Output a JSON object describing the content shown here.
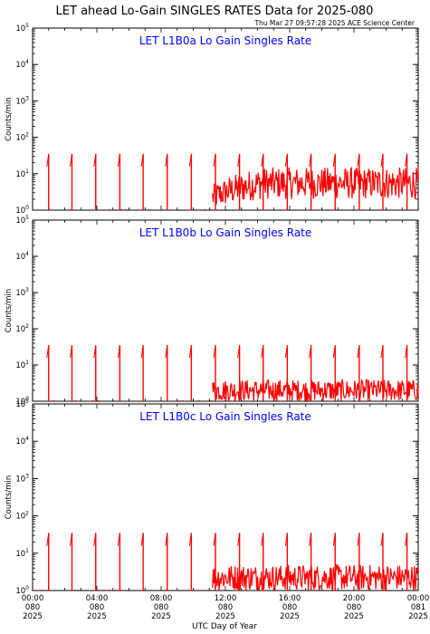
{
  "header": {
    "title": "LET ahead Lo-Gain SINGLES RATES Data for 2025-080",
    "timestamp": "Thu Mar 27 09:57:28 2025 ACE Science Center"
  },
  "colors": {
    "data": "#ff0000",
    "panel_title": "#0000ff",
    "axis": "#000000"
  },
  "chart_data": [
    {
      "type": "line",
      "panel_title": "LET L1B0a Lo Gain Singles Rate",
      "ylabel": "Counts/min",
      "yscale": "log",
      "ylim": [
        1,
        100000
      ],
      "y_tick_labels": [
        "10^0",
        "10^1",
        "10^2",
        "10^3",
        "10^4",
        "10^5"
      ],
      "xlim": [
        0,
        24
      ],
      "series": [
        {
          "spikes_hours": [
            1.0,
            2.45,
            3.93,
            5.43,
            6.88,
            8.38,
            9.88,
            11.38,
            12.88,
            14.35,
            15.85,
            17.33,
            18.83,
            20.33,
            21.8,
            23.3
          ],
          "spike_peak": 35,
          "baseline_before_hour": 11.2,
          "baseline_low": 1,
          "noisy_after_hour": 11.2,
          "noisy_range_early": [
            1,
            5
          ],
          "noisy_range_late": [
            2,
            15
          ]
        }
      ]
    },
    {
      "type": "line",
      "panel_title": "LET L1B0b Lo Gain Singles Rate",
      "ylabel": "Counts/min",
      "yscale": "log",
      "ylim": [
        1,
        100000
      ],
      "y_tick_labels": [
        "10^0",
        "10^1",
        "10^2",
        "10^3",
        "10^4",
        "10^5"
      ],
      "xlim": [
        0,
        24
      ],
      "series": [
        {
          "spikes_hours": [
            1.0,
            2.45,
            3.93,
            5.43,
            6.88,
            8.38,
            9.88,
            11.38,
            12.88,
            14.35,
            15.85,
            17.33,
            18.83,
            20.33,
            21.8,
            23.3
          ],
          "spike_peak": 35,
          "baseline_low": 1,
          "noisy_after_hour": 11.2,
          "noisy_range": [
            1,
            4
          ]
        }
      ]
    },
    {
      "type": "line",
      "panel_title": "LET L1B0c Lo Gain Singles Rate",
      "ylabel": "Counts/min",
      "yscale": "log",
      "ylim": [
        1,
        100000
      ],
      "y_tick_labels": [
        "10^0",
        "10^1",
        "10^2",
        "10^3",
        "10^4",
        "10^5"
      ],
      "xlim": [
        0,
        24
      ],
      "series": [
        {
          "spikes_hours": [
            1.0,
            2.45,
            3.93,
            5.43,
            6.88,
            8.38,
            9.88,
            11.38,
            12.88,
            14.35,
            15.85,
            17.33,
            18.83,
            20.33,
            21.8,
            23.3
          ],
          "spike_peak": 35,
          "baseline_low": 1,
          "noisy_after_hour": 11.2,
          "noisy_range": [
            1,
            5
          ]
        }
      ]
    }
  ],
  "x_axis": {
    "label": "UTC Day of Year",
    "ticks": [
      {
        "hour": 0,
        "time": "00:00",
        "doy": "080",
        "year": "2025"
      },
      {
        "hour": 4,
        "time": "04:00",
        "doy": "080",
        "year": "2025"
      },
      {
        "hour": 8,
        "time": "08:00",
        "doy": "080",
        "year": "2025"
      },
      {
        "hour": 12,
        "time": "12:00",
        "doy": "080",
        "year": "2025"
      },
      {
        "hour": 16,
        "time": "16:00",
        "doy": "080",
        "year": "2025"
      },
      {
        "hour": 20,
        "time": "20:00",
        "doy": "080",
        "year": "2025"
      },
      {
        "hour": 24,
        "time": "00:00",
        "doy": "081",
        "year": "2025"
      }
    ]
  }
}
